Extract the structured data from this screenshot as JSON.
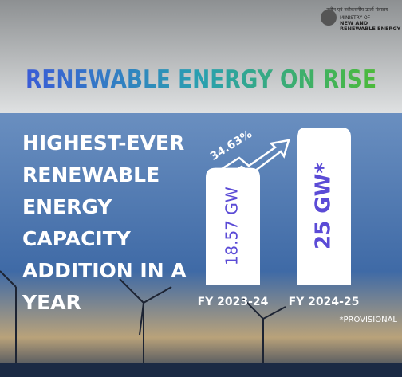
{
  "header": {
    "ministry_hindi": "नवीन एवं नवीकरणीय ऊर्जा मंत्रालय",
    "ministry_lines": [
      "MINISTRY OF",
      "NEW AND",
      "RENEWABLE ENERGY"
    ]
  },
  "chart_data": {
    "type": "bar",
    "title": "RENEWABLE ENERGY ON RISE",
    "headline": [
      "HIGHEST-EVER",
      "RENEWABLE",
      "ENERGY",
      "CAPACITY",
      "ADDITION IN A",
      "YEAR"
    ],
    "categories": [
      "FY 2023-24",
      "FY 2024-25"
    ],
    "values": [
      18.57,
      25
    ],
    "value_labels": [
      "18.57 GW",
      "25 GW*"
    ],
    "color": "#ffffff",
    "label_color": "#5b4bd6",
    "growth_label": "34.63%",
    "note": "*PROVISIONAL"
  }
}
